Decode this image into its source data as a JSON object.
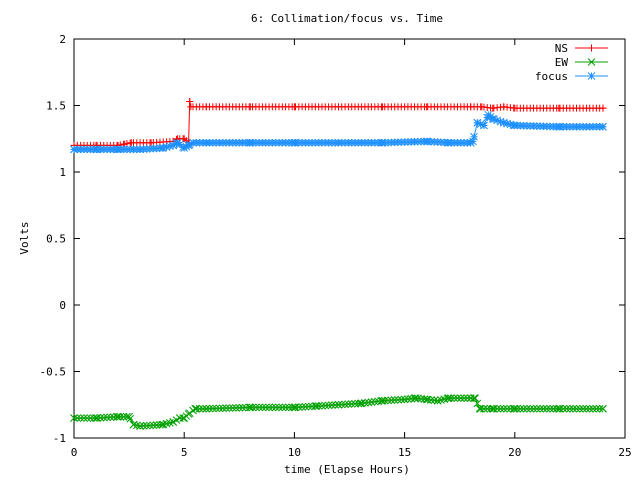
{
  "chart_data": {
    "type": "line",
    "title": "6: Collimation/focus vs. Time",
    "xlabel": "time (Elapse Hours)",
    "ylabel": "Volts",
    "xlim": [
      0,
      25
    ],
    "ylim": [
      -1,
      2
    ],
    "xticks": [
      0,
      5,
      10,
      15,
      20,
      25
    ],
    "xtick_labels": [
      "0",
      "5",
      "10",
      "15",
      "20",
      "25"
    ],
    "yticks": [
      -1,
      -0.5,
      0,
      0.5,
      1,
      1.5,
      2
    ],
    "ytick_labels": [
      "-1",
      "-0.5",
      "0",
      "0.5",
      "1",
      "1.5",
      "2"
    ],
    "grid": false,
    "legend_position": "top-right",
    "series": [
      {
        "name": "NS",
        "color": "#ff0000",
        "marker": "plus",
        "x": [
          0,
          1,
          2,
          2.3,
          2.6,
          3.5,
          4.5,
          4.7,
          5.0,
          5.2,
          5.25,
          5.3,
          6,
          8,
          10,
          12,
          14,
          16,
          18,
          18.5,
          19,
          19.5,
          20,
          22,
          24
        ],
        "y": [
          1.2,
          1.2,
          1.2,
          1.21,
          1.22,
          1.22,
          1.23,
          1.25,
          1.25,
          1.22,
          1.53,
          1.49,
          1.49,
          1.49,
          1.49,
          1.49,
          1.49,
          1.49,
          1.49,
          1.49,
          1.48,
          1.49,
          1.48,
          1.48,
          1.48
        ]
      },
      {
        "name": "EW",
        "color": "#00a000",
        "marker": "cross",
        "x": [
          0,
          1,
          2,
          2.5,
          2.7,
          3,
          4,
          4.5,
          4.8,
          5.0,
          5.2,
          5.5,
          6,
          8,
          10,
          11,
          12,
          13,
          14,
          15,
          15.5,
          16,
          16.5,
          17,
          18,
          18.2,
          18.4,
          19,
          20,
          22,
          24
        ],
        "y": [
          -0.85,
          -0.85,
          -0.84,
          -0.84,
          -0.9,
          -0.91,
          -0.9,
          -0.88,
          -0.85,
          -0.85,
          -0.82,
          -0.78,
          -0.78,
          -0.77,
          -0.77,
          -0.76,
          -0.75,
          -0.74,
          -0.72,
          -0.71,
          -0.7,
          -0.71,
          -0.72,
          -0.7,
          -0.7,
          -0.7,
          -0.78,
          -0.78,
          -0.78,
          -0.78,
          -0.78
        ]
      },
      {
        "name": "focus",
        "color": "#1e90ff",
        "marker": "star",
        "x": [
          0,
          1,
          2,
          3,
          4,
          4.5,
          4.7,
          5.0,
          5.2,
          5.4,
          6,
          8,
          10,
          12,
          14,
          16,
          17,
          18,
          18.1,
          18.3,
          18.6,
          18.8,
          19,
          19.5,
          20,
          22,
          24
        ],
        "y": [
          1.17,
          1.17,
          1.17,
          1.17,
          1.18,
          1.2,
          1.22,
          1.18,
          1.2,
          1.22,
          1.22,
          1.22,
          1.22,
          1.22,
          1.22,
          1.23,
          1.22,
          1.22,
          1.23,
          1.37,
          1.35,
          1.43,
          1.4,
          1.37,
          1.35,
          1.34,
          1.34
        ]
      }
    ]
  }
}
